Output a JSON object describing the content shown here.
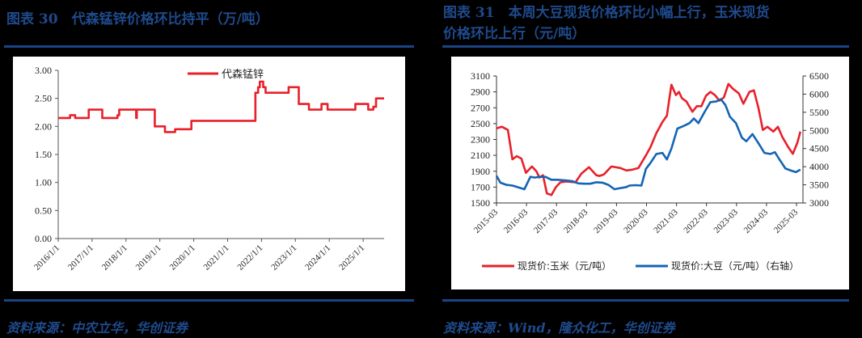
{
  "left_figure": {
    "title": "图表 30　代森锰锌价格环比持平（万/吨）",
    "source": "资料来源：中农立华，华创证券"
  },
  "right_figure": {
    "title_line1": "图表 31　本周大豆现货价格环比小幅上行，玉米现货",
    "title_line2": "价格环比上行（元/吨）",
    "source": "资料来源：Wind，隆众化工，华创证券"
  },
  "colors": {
    "red": "#e8202a",
    "blue": "#1464b4",
    "title_blue": "#1f4a8c",
    "rule_blue": "#1b4486"
  },
  "chart_data": [
    {
      "type": "line",
      "title": "代森锰锌价格环比持平（万/吨）",
      "xlabel": "",
      "ylabel": "万/吨",
      "ylim": [
        0,
        3
      ],
      "yticks": [
        "0.00",
        "0.50",
        "1.00",
        "1.50",
        "2.00",
        "2.50",
        "3.00"
      ],
      "xticks": [
        "2016/1/1",
        "2017/1/1",
        "2018/1/1",
        "2019/1/1",
        "2020/1/1",
        "2021/1/1",
        "2022/1/1",
        "2023/1/1",
        "2024/1/1",
        "2025/1/1"
      ],
      "grid": false,
      "legend_position": "top-center",
      "series": [
        {
          "name": "代森锰锌",
          "color": "#e8202a",
          "step": true,
          "x": [
            2016.0,
            2016.35,
            2016.5,
            2016.9,
            2017.3,
            2017.75,
            2017.8,
            2018.3,
            2018.32,
            2018.85,
            2019.15,
            2019.45,
            2019.93,
            2021.82,
            2021.9,
            2021.95,
            2022.05,
            2022.12,
            2022.8,
            2023.1,
            2023.4,
            2023.77,
            2023.95,
            2024.77,
            2025.15,
            2025.3,
            2025.38,
            2025.5
          ],
          "values": [
            2.15,
            2.2,
            2.15,
            2.3,
            2.15,
            2.2,
            2.3,
            2.15,
            2.3,
            2.0,
            1.9,
            1.95,
            2.1,
            2.6,
            2.7,
            2.8,
            2.7,
            2.6,
            2.7,
            2.4,
            2.3,
            2.4,
            2.3,
            2.4,
            2.3,
            2.35,
            2.5,
            2.5
          ]
        }
      ]
    },
    {
      "type": "line",
      "title": "本周大豆现货价格环比小幅上行，玉米现货价格环比上行（元/吨）",
      "xlabel": "",
      "ylabel_left": "元/吨",
      "ylabel_right": "元/吨",
      "ylim_left": [
        1500,
        3100
      ],
      "ylim_right": [
        3000,
        6500
      ],
      "yticks_left": [
        "1500",
        "1700",
        "1900",
        "2100",
        "2300",
        "2500",
        "2700",
        "2900",
        "3100"
      ],
      "yticks_right": [
        "3000",
        "3500",
        "4000",
        "4500",
        "5000",
        "5500",
        "6000",
        "6500"
      ],
      "xticks": [
        "2015-03",
        "2016-03",
        "2017-03",
        "2018-03",
        "2019-03",
        "2020-03",
        "2021-03",
        "2022-03",
        "2023-03",
        "2024-03",
        "2025-03"
      ],
      "grid": false,
      "legend_position": "bottom",
      "series": [
        {
          "name": "现货价:玉米（元/吨）",
          "axis": "left",
          "color": "#e8202a",
          "x": [
            2015.17,
            2015.35,
            2015.55,
            2015.7,
            2015.85,
            2016.0,
            2016.15,
            2016.35,
            2016.5,
            2016.6,
            2016.72,
            2016.85,
            2017.0,
            2017.15,
            2017.3,
            2017.5,
            2017.8,
            2018.0,
            2018.25,
            2018.5,
            2018.6,
            2018.75,
            2019.0,
            2019.3,
            2019.5,
            2019.7,
            2019.9,
            2020.15,
            2020.3,
            2020.5,
            2020.7,
            2020.85,
            2021.0,
            2021.15,
            2021.25,
            2021.35,
            2021.5,
            2021.7,
            2021.85,
            2022.0,
            2022.15,
            2022.3,
            2022.45,
            2022.6,
            2022.75,
            2022.9,
            2023.05,
            2023.25,
            2023.4,
            2023.6,
            2023.75,
            2023.9,
            2024.05,
            2024.2,
            2024.4,
            2024.55,
            2024.7,
            2024.9,
            2025.05,
            2025.2,
            2025.3
          ],
          "values": [
            2440,
            2460,
            2420,
            2050,
            2090,
            2060,
            1880,
            1960,
            1900,
            1820,
            1850,
            1620,
            1600,
            1700,
            1760,
            1770,
            1760,
            1870,
            1950,
            1850,
            1840,
            1860,
            1960,
            1940,
            1910,
            1920,
            1940,
            2100,
            2200,
            2380,
            2520,
            2600,
            2990,
            2860,
            2900,
            2820,
            2780,
            2650,
            2720,
            2720,
            2850,
            2900,
            2860,
            2790,
            2830,
            3000,
            2940,
            2880,
            2750,
            2900,
            2920,
            2700,
            2420,
            2460,
            2400,
            2460,
            2330,
            2200,
            2120,
            2260,
            2400
          ]
        },
        {
          "name": "现货价:大豆（元/吨）（右轴）",
          "axis": "right",
          "color": "#1464b4",
          "x": [
            2015.17,
            2015.3,
            2015.5,
            2015.7,
            2015.9,
            2016.1,
            2016.3,
            2016.45,
            2016.6,
            2016.8,
            2017.0,
            2017.2,
            2017.5,
            2017.7,
            2017.9,
            2018.1,
            2018.3,
            2018.5,
            2018.7,
            2018.9,
            2019.1,
            2019.3,
            2019.5,
            2019.6,
            2019.8,
            2020.0,
            2020.15,
            2020.3,
            2020.5,
            2020.7,
            2020.85,
            2021.0,
            2021.2,
            2021.4,
            2021.6,
            2021.75,
            2021.9,
            2022.1,
            2022.3,
            2022.5,
            2022.65,
            2022.8,
            2022.95,
            2023.15,
            2023.35,
            2023.5,
            2023.7,
            2023.9,
            2024.1,
            2024.3,
            2024.45,
            2024.6,
            2024.8,
            2025.0,
            2025.15,
            2025.3
          ],
          "values": [
            3750,
            3560,
            3500,
            3480,
            3430,
            3380,
            3720,
            3700,
            3720,
            3720,
            3640,
            3640,
            3620,
            3600,
            3540,
            3530,
            3530,
            3570,
            3560,
            3500,
            3380,
            3410,
            3440,
            3480,
            3490,
            3480,
            3940,
            4100,
            4350,
            4380,
            4200,
            4500,
            5050,
            5120,
            5200,
            5330,
            5200,
            5500,
            5780,
            5800,
            5860,
            5700,
            5380,
            5200,
            4800,
            4700,
            4900,
            4650,
            4380,
            4350,
            4400,
            4200,
            3950,
            3890,
            3850,
            3920
          ]
        }
      ]
    }
  ]
}
